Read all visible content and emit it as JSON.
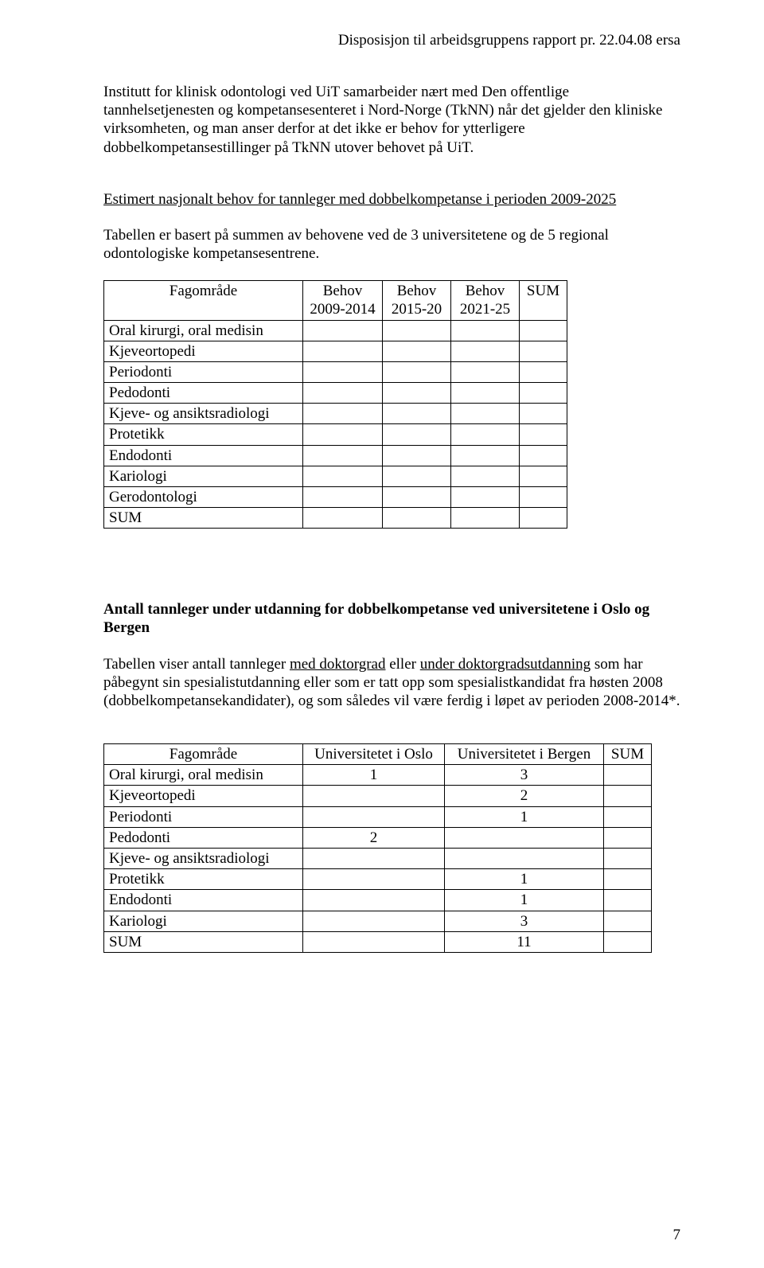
{
  "header": "Disposisjon til arbeidsgruppens rapport pr. 22.04.08 ersa",
  "p1": "Institutt for klinisk odontologi ved UiT samarbeider nært med Den offentlige tannhelsetjenesten og kompetansesenteret i Nord-Norge (TkNN) når det gjelder den kliniske virksomheten, og man anser derfor at det ikke er behov for ytterligere dobbelkompetansestillinger på TkNN utover behovet på UiT.",
  "heading1": "Estimert nasjonalt behov for tannleger med dobbelkompetanse i perioden 2009-2025",
  "p2": "Tabellen er basert på summen av behovene ved de 3 universitetene og de 5 regional odontologiske kompetansesentrene.",
  "table1": {
    "head": {
      "c1": "Fagområde",
      "c2a": "Behov",
      "c2b": "2009-2014",
      "c3a": "Behov",
      "c3b": "2015-20",
      "c4a": "Behov",
      "c4b": "2021-25",
      "c5": "SUM"
    },
    "rows": [
      "Oral kirurgi, oral medisin",
      "Kjeveortopedi",
      "Periodonti",
      "Pedodonti",
      "Kjeve- og ansiktsradiologi",
      "Protetikk",
      "Endodonti",
      "Kariologi",
      "Gerodontologi",
      "SUM"
    ]
  },
  "heading2": "Antall tannleger under utdanning for dobbelkompetanse ved universitetene i Oslo og Bergen",
  "p3a": "Tabellen viser antall tannleger ",
  "p3b": "med doktorgrad",
  "p3c": " eller ",
  "p3d": "under doktorgradsutdanning",
  "p3e": " som har påbegynt sin spesialistutdanning eller som er tatt opp som spesialistkandidat fra høsten 2008 (dobbelkompetansekandidater), og som således vil være ferdig i løpet av perioden 2008-2014*.",
  "table2": {
    "head": {
      "c1": "Fagområde",
      "c2": "Universitetet i Oslo",
      "c3": "Universitetet i Bergen",
      "c4": "SUM"
    },
    "rows": [
      {
        "label": "Oral kirurgi, oral medisin",
        "oslo": "1",
        "bergen": "3",
        "sum": ""
      },
      {
        "label": "Kjeveortopedi",
        "oslo": "",
        "bergen": "2",
        "sum": ""
      },
      {
        "label": "Periodonti",
        "oslo": "",
        "bergen": "1",
        "sum": ""
      },
      {
        "label": "Pedodonti",
        "oslo": "2",
        "bergen": "",
        "sum": ""
      },
      {
        "label": "Kjeve- og ansiktsradiologi",
        "oslo": "",
        "bergen": "",
        "sum": ""
      },
      {
        "label": "Protetikk",
        "oslo": "",
        "bergen": "1",
        "sum": ""
      },
      {
        "label": "Endodonti",
        "oslo": "",
        "bergen": "1",
        "sum": ""
      },
      {
        "label": "Kariologi",
        "oslo": "",
        "bergen": "3",
        "sum": ""
      },
      {
        "label": "SUM",
        "oslo": "",
        "bergen": "11",
        "sum": ""
      }
    ]
  },
  "page_number": "7"
}
